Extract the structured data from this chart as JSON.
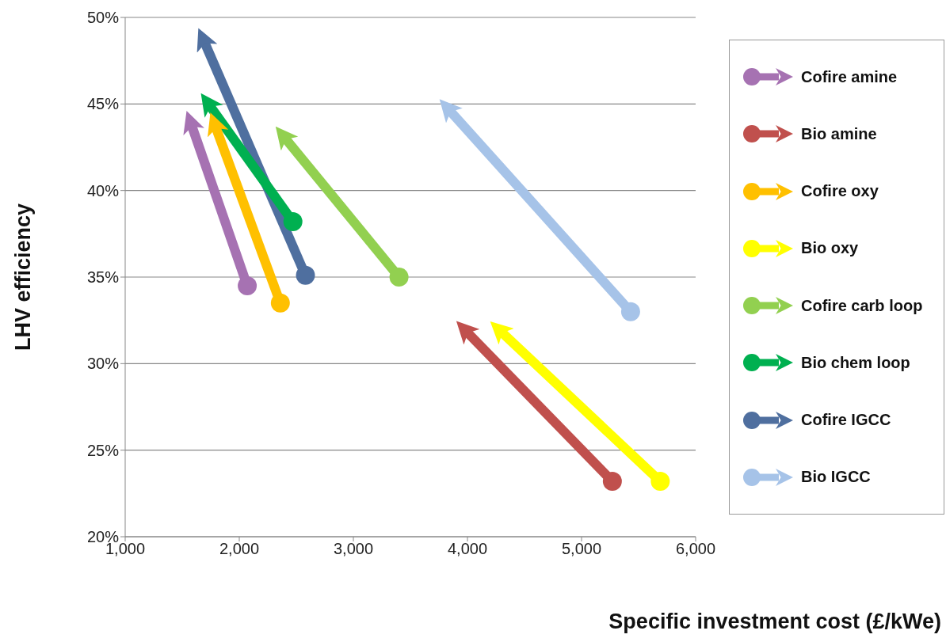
{
  "chart_data": {
    "type": "line",
    "xlabel": "Specific investment cost (£/kWe)",
    "ylabel": "LHV efficiency",
    "marker": "circle",
    "grid": "y",
    "legend": "right",
    "xlim": [
      1000,
      6000
    ],
    "xticks": [
      {
        "value": 1000,
        "label": "1,000"
      },
      {
        "value": 2000,
        "label": "2,000"
      },
      {
        "value": 3000,
        "label": "3,000"
      },
      {
        "value": 4000,
        "label": "4,000"
      },
      {
        "value": 5000,
        "label": "5,000"
      },
      {
        "value": 6000,
        "label": "6,000"
      }
    ],
    "ylim": [
      20,
      50
    ],
    "yticks": [
      {
        "value": 20,
        "label": "20%"
      },
      {
        "value": 25,
        "label": "25%"
      },
      {
        "value": 30,
        "label": "30%"
      },
      {
        "value": 35,
        "label": "35%"
      },
      {
        "value": 40,
        "label": "40%"
      },
      {
        "value": 45,
        "label": "45%"
      },
      {
        "value": 50,
        "label": "50%"
      }
    ],
    "series": [
      {
        "name": "Cofire amine",
        "color": "#a672b2",
        "x": [
          2070,
          1570
        ],
        "values": [
          34.5,
          44.0
        ]
      },
      {
        "name": "Bio amine",
        "color": "#c0504d",
        "x": [
          5270,
          3970
        ],
        "values": [
          23.2,
          32.0
        ]
      },
      {
        "name": "Cofire oxy",
        "color": "#ffc000",
        "x": [
          2360,
          1780
        ],
        "values": [
          33.5,
          43.9
        ]
      },
      {
        "name": "Bio oxy",
        "color": "#ffff00",
        "x": [
          5690,
          4270
        ],
        "values": [
          23.2,
          32.0
        ]
      },
      {
        "name": "Cofire carb loop",
        "color": "#92d050",
        "x": [
          3400,
          2380
        ],
        "values": [
          35.0,
          43.2
        ]
      },
      {
        "name": "Bio chem loop",
        "color": "#00b050",
        "x": [
          2470,
          1720
        ],
        "values": [
          38.2,
          45.1
        ]
      },
      {
        "name": "Cofire IGCC",
        "color": "#4f6f9f",
        "x": [
          2580,
          1680
        ],
        "values": [
          35.1,
          48.8
        ]
      },
      {
        "name": "Bio IGCC",
        "color": "#a6c3e8",
        "x": [
          5430,
          3820
        ],
        "values": [
          33.0,
          44.8
        ]
      }
    ]
  }
}
